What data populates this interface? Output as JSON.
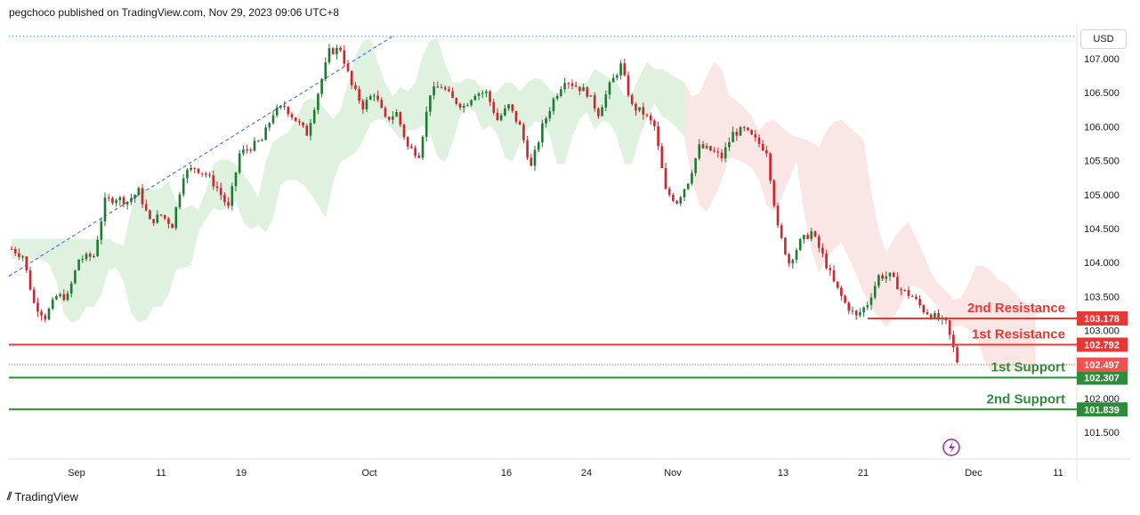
{
  "header": {
    "publisher_text": "pegchoco published on TradingView.com, Nov 29, 2023 09:06 UTC+8"
  },
  "footer": {
    "brand": "TradingView"
  },
  "price_scale": {
    "currency": "USD"
  },
  "colors": {
    "up": "#26a69a",
    "down": "#ef5350",
    "candle_up": "#1e7a2e",
    "candle_down": "#d2222d",
    "resistance": "#e53935",
    "support": "#2e8b3a",
    "cloud_bull": "#dcefdc",
    "cloud_bear": "#fbe3e3",
    "trendline": "#2962ff"
  },
  "chart_data": {
    "type": "candlestick",
    "symbol_note": "",
    "ylim": [
      101.1,
      107.4
    ],
    "y_ticks": [
      "107.000",
      "106.500",
      "106.000",
      "105.500",
      "105.000",
      "104.500",
      "104.000",
      "103.500",
      "103.000",
      "102.500",
      "102.000",
      "101.500"
    ],
    "x_ticks": [
      "Sep",
      "11",
      "19",
      "Oct",
      "16",
      "24",
      "Nov",
      "13",
      "21",
      "Dec",
      "11"
    ],
    "levels": [
      {
        "name": "2nd Resistance",
        "value": 103.178,
        "label": "103.178",
        "kind": "resistance"
      },
      {
        "name": "1st Resistance",
        "value": 102.792,
        "label": "102.792",
        "kind": "resistance"
      },
      {
        "name": "1st Support",
        "value": 102.307,
        "label": "102.307",
        "kind": "support"
      },
      {
        "name": "2nd Support",
        "value": 101.839,
        "label": "101.839",
        "kind": "support"
      }
    ],
    "current_price": {
      "value": 102.497,
      "label": "102.497"
    },
    "high_line": 107.33,
    "close_path": [
      [
        0,
        104.2
      ],
      [
        3,
        104.1
      ],
      [
        6,
        103.4
      ],
      [
        9,
        103.2
      ],
      [
        12,
        103.5
      ],
      [
        15,
        103.5
      ],
      [
        18,
        104.05
      ],
      [
        22,
        104.1
      ],
      [
        25,
        104.9
      ],
      [
        28,
        104.95
      ],
      [
        31,
        104.9
      ],
      [
        34,
        105.05
      ],
      [
        37,
        104.6
      ],
      [
        40,
        104.7
      ],
      [
        43,
        104.55
      ],
      [
        46,
        105.3
      ],
      [
        49,
        105.4
      ],
      [
        52,
        105.3
      ],
      [
        55,
        105.1
      ],
      [
        58,
        104.8
      ],
      [
        61,
        105.6
      ],
      [
        64,
        105.7
      ],
      [
        67,
        105.8
      ],
      [
        70,
        106.2
      ],
      [
        73,
        106.3
      ],
      [
        76,
        106.1
      ],
      [
        79,
        105.9
      ],
      [
        82,
        106.5
      ],
      [
        85,
        107.1
      ],
      [
        88,
        107.15
      ],
      [
        91,
        106.6
      ],
      [
        94,
        106.3
      ],
      [
        97,
        106.5
      ],
      [
        100,
        106.1
      ],
      [
        103,
        106.2
      ],
      [
        106,
        105.7
      ],
      [
        109,
        105.6
      ],
      [
        112,
        106.5
      ],
      [
        115,
        106.6
      ],
      [
        118,
        106.4
      ],
      [
        121,
        106.3
      ],
      [
        124,
        106.5
      ],
      [
        127,
        106.5
      ],
      [
        130,
        106.1
      ],
      [
        133,
        106.3
      ],
      [
        136,
        106.0
      ],
      [
        139,
        105.4
      ],
      [
        142,
        106.0
      ],
      [
        145,
        106.4
      ],
      [
        148,
        106.7
      ],
      [
        151,
        106.6
      ],
      [
        154,
        106.5
      ],
      [
        157,
        106.2
      ],
      [
        160,
        106.6
      ],
      [
        163,
        106.9
      ],
      [
        166,
        106.3
      ],
      [
        169,
        106.2
      ],
      [
        172,
        106.0
      ],
      [
        175,
        105.05
      ],
      [
        178,
        104.9
      ],
      [
        181,
        105.2
      ],
      [
        184,
        105.7
      ],
      [
        187,
        105.65
      ],
      [
        190,
        105.55
      ],
      [
        193,
        105.9
      ],
      [
        196,
        105.95
      ],
      [
        199,
        105.8
      ],
      [
        202,
        105.65
      ],
      [
        205,
        104.5
      ],
      [
        208,
        104.0
      ],
      [
        211,
        104.3
      ],
      [
        214,
        104.45
      ],
      [
        217,
        104.1
      ],
      [
        220,
        103.7
      ],
      [
        223,
        103.4
      ],
      [
        226,
        103.2
      ],
      [
        229,
        103.4
      ],
      [
        232,
        103.8
      ],
      [
        235,
        103.8
      ],
      [
        238,
        103.6
      ],
      [
        241,
        103.5
      ],
      [
        244,
        103.3
      ],
      [
        247,
        103.2
      ],
      [
        250,
        103.1
      ],
      [
        253,
        102.55
      ]
    ]
  }
}
